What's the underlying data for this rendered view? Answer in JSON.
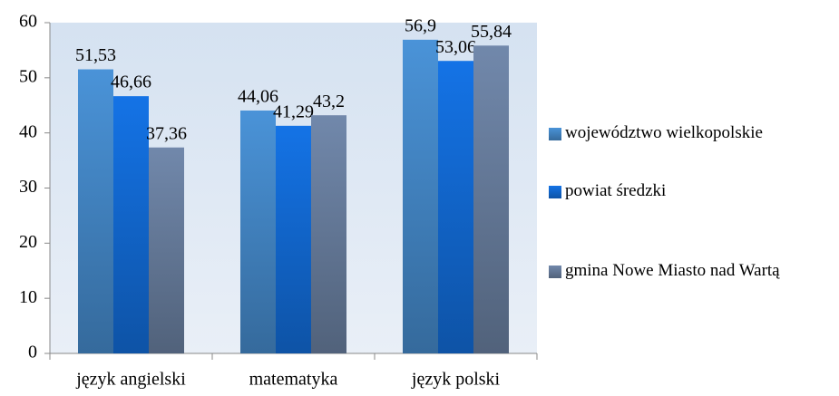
{
  "chart_data": {
    "type": "bar",
    "categories": [
      "język angielski",
      "matematyka",
      "język polski"
    ],
    "series": [
      {
        "name": "województwo wielkopolskie",
        "color": "#4a93d8",
        "values": [
          51.53,
          44.06,
          56.9
        ],
        "value_labels": [
          "51,53",
          "44,06",
          "56,9"
        ]
      },
      {
        "name": "powiat średzki",
        "color": "#1473e6",
        "values": [
          46.66,
          41.29,
          53.06
        ],
        "value_labels": [
          "46,66",
          "41,29",
          "53,06"
        ]
      },
      {
        "name": "gmina Nowe Miasto nad Wartą",
        "color": "#7188ab",
        "values": [
          37.36,
          43.2,
          55.84
        ],
        "value_labels": [
          "37,36",
          "43,2",
          "55,84"
        ]
      }
    ],
    "ylim": [
      0,
      60
    ],
    "yticks": [
      0,
      10,
      20,
      30,
      40,
      50,
      60
    ],
    "legend": "right"
  }
}
